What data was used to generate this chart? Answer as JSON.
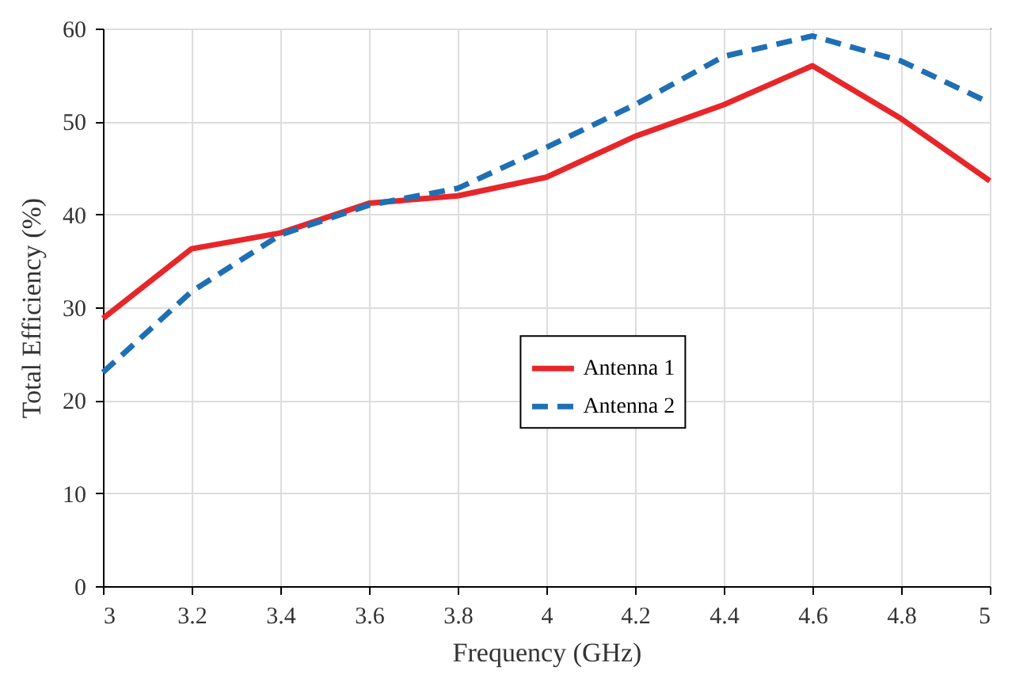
{
  "chart_data": {
    "type": "line",
    "xlabel": "Frequency (GHz)",
    "ylabel": "Total Efficiency (%)",
    "x": [
      3,
      3.2,
      3.4,
      3.6,
      3.8,
      4,
      4.2,
      4.4,
      4.6,
      4.8,
      5
    ],
    "series": [
      {
        "name": "Antenna 1",
        "color": "#e8262a",
        "line_style": "solid",
        "values": [
          28.8,
          36.3,
          38,
          41.2,
          42,
          44,
          48.4,
          51.8,
          56,
          50.3,
          43.6
        ]
      },
      {
        "name": "Antenna 2",
        "color": "#1f6fb4",
        "line_style": "dashed",
        "values": [
          23,
          31.7,
          37.8,
          41,
          42.8,
          47.2,
          51.8,
          57,
          59.2,
          56.5,
          52
        ]
      }
    ],
    "xlim": [
      3,
      5
    ],
    "xticks": [
      3,
      3.2,
      3.4,
      3.6,
      3.8,
      4,
      4.2,
      4.4,
      4.6,
      4.8,
      5
    ],
    "ylim": [
      0,
      60
    ],
    "yticks": [
      0,
      10,
      20,
      30,
      40,
      50,
      60
    ],
    "grid": true,
    "legend": "center right"
  }
}
